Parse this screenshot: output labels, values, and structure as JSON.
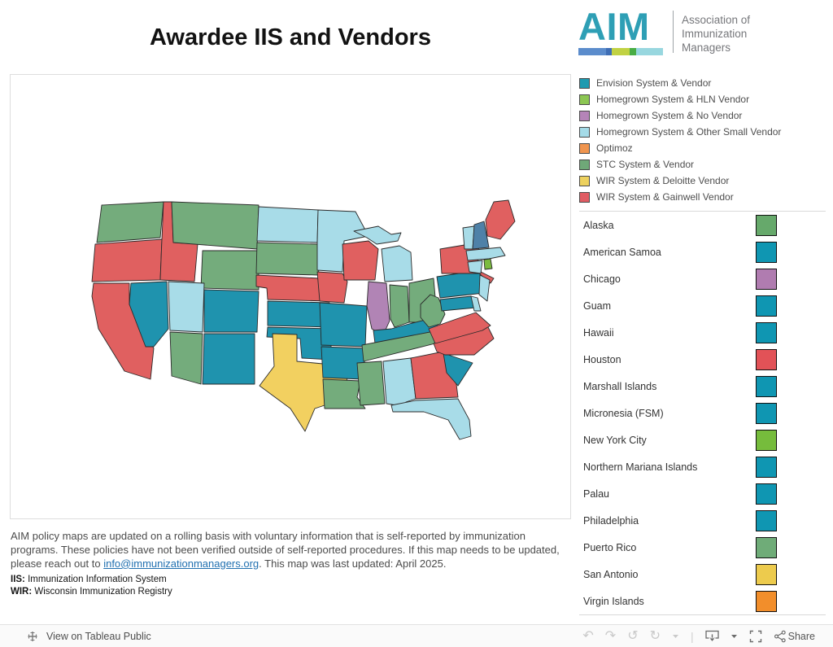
{
  "title": "Awardee IIS and Vendors",
  "logo": {
    "acronym": "AIM",
    "acronym_color": "#2E9FB5",
    "org_lines": [
      "Association of",
      "Immunization",
      "Managers"
    ],
    "stripe": [
      {
        "color": "#5B8CCC",
        "w": 34
      },
      {
        "color": "#3F6EB5",
        "w": 7
      },
      {
        "color": "#C1D243",
        "w": 22
      },
      {
        "color": "#48AD44",
        "w": 8
      },
      {
        "color": "#98D7DF",
        "w": 33
      }
    ]
  },
  "legend": {
    "items": [
      {
        "label": "Envision System & Vendor",
        "color": "#1E9AB0"
      },
      {
        "label": "Homegrown System & HLN Vendor",
        "color": "#8CC653"
      },
      {
        "label": "Homegrown System & No Vendor",
        "color": "#B584B8"
      },
      {
        "label": "Homegrown System & Other Small Vendor",
        "color": "#A5DBE8"
      },
      {
        "label": "Optimoz",
        "color": "#F0954F"
      },
      {
        "label": "STC System & Vendor",
        "color": "#6FA878"
      },
      {
        "label": "WIR System & Deloitte Vendor",
        "color": "#EDD15E"
      },
      {
        "label": "WIR System & Gainwell Vendor",
        "color": "#E05C63"
      }
    ]
  },
  "regions": {
    "items": [
      {
        "label": "Alaska",
        "color": "#66A96B"
      },
      {
        "label": "American Samoa",
        "color": "#0F96B2"
      },
      {
        "label": "Chicago",
        "color": "#B07CB0"
      },
      {
        "label": "Guam",
        "color": "#0F96B2"
      },
      {
        "label": "Hawaii",
        "color": "#0F96B2"
      },
      {
        "label": "Houston",
        "color": "#E25257"
      },
      {
        "label": "Marshall Islands",
        "color": "#0F96B2"
      },
      {
        "label": "Micronesia (FSM)",
        "color": "#0F96B2"
      },
      {
        "label": "New York City",
        "color": "#76BC3C"
      },
      {
        "label": "Northern Mariana Islands",
        "color": "#0F96B2"
      },
      {
        "label": "Palau",
        "color": "#0F96B2"
      },
      {
        "label": "Philadelphia",
        "color": "#0F96B2"
      },
      {
        "label": "Puerto Rico",
        "color": "#6FAC78"
      },
      {
        "label": "San Antonio",
        "color": "#EDCB4D"
      },
      {
        "label": "Virgin Islands",
        "color": "#F28E2B"
      }
    ]
  },
  "map": {
    "categories": {
      "envision": "#1F93AE",
      "hln": "#7CBB3F",
      "no_vendor": "#B184B5",
      "other_small": "#A8DCE8",
      "stc": "#74AC7C",
      "deloitte": "#F2D060",
      "gainwell": "#E06060",
      "unknown_blue": "#4E81A8"
    },
    "states": [
      {
        "id": "WA",
        "category": "stc"
      },
      {
        "id": "OR",
        "category": "gainwell"
      },
      {
        "id": "CA",
        "category": "gainwell"
      },
      {
        "id": "ID",
        "category": "gainwell"
      },
      {
        "id": "MT",
        "category": "stc"
      },
      {
        "id": "WY",
        "category": "stc"
      },
      {
        "id": "NV",
        "category": "envision"
      },
      {
        "id": "UT",
        "category": "other_small"
      },
      {
        "id": "AZ",
        "category": "stc"
      },
      {
        "id": "NM",
        "category": "envision"
      },
      {
        "id": "CO",
        "category": "envision"
      },
      {
        "id": "ND",
        "category": "other_small"
      },
      {
        "id": "SD",
        "category": "stc"
      },
      {
        "id": "NE",
        "category": "gainwell"
      },
      {
        "id": "KS",
        "category": "envision"
      },
      {
        "id": "OK",
        "category": "envision"
      },
      {
        "id": "TX",
        "category": "deloitte"
      },
      {
        "id": "MN",
        "category": "other_small"
      },
      {
        "id": "IA",
        "category": "gainwell"
      },
      {
        "id": "MO",
        "category": "envision"
      },
      {
        "id": "AR",
        "category": "envision"
      },
      {
        "id": "LA",
        "category": "stc"
      },
      {
        "id": "WI",
        "category": "gainwell"
      },
      {
        "id": "MIUP",
        "category": "other_small"
      },
      {
        "id": "MI",
        "category": "other_small"
      },
      {
        "id": "IL",
        "category": "no_vendor"
      },
      {
        "id": "IN",
        "category": "stc"
      },
      {
        "id": "OH",
        "category": "stc"
      },
      {
        "id": "KY",
        "category": "envision"
      },
      {
        "id": "TN",
        "category": "stc"
      },
      {
        "id": "MS",
        "category": "stc"
      },
      {
        "id": "AL",
        "category": "other_small"
      },
      {
        "id": "GA",
        "category": "gainwell"
      },
      {
        "id": "FL",
        "category": "other_small"
      },
      {
        "id": "SC",
        "category": "envision"
      },
      {
        "id": "NC",
        "category": "gainwell"
      },
      {
        "id": "VA",
        "category": "gainwell"
      },
      {
        "id": "WV",
        "category": "stc"
      },
      {
        "id": "PA",
        "category": "envision"
      },
      {
        "id": "NY",
        "category": "gainwell"
      },
      {
        "id": "NJ",
        "category": "other_small"
      },
      {
        "id": "MD",
        "category": "envision"
      },
      {
        "id": "DE",
        "category": "other_small"
      },
      {
        "id": "VT",
        "category": "other_small"
      },
      {
        "id": "NH",
        "category": "unknown_blue"
      },
      {
        "id": "ME",
        "category": "gainwell"
      },
      {
        "id": "MA",
        "category": "other_small"
      },
      {
        "id": "CT",
        "category": "other_small"
      },
      {
        "id": "RI",
        "category": "hln"
      }
    ]
  },
  "footer": {
    "text_before": "AIM policy maps are updated on a rolling basis with voluntary information that is self-reported by immunization programs. These policies have not been verified outside of self-reported procedures. If this map needs to be updated, please reach out to ",
    "link_text": "info@immunizationmanagers.org",
    "text_after": ". This map was last updated: April 2025.",
    "abbr": [
      {
        "term": "IIS:",
        "definition": " Immunization Information System"
      },
      {
        "term": "WIR:",
        "definition": " Wisconsin Immunization Registry"
      }
    ]
  },
  "toolbar": {
    "view_label": "View on Tableau Public",
    "share_label": "Share"
  }
}
